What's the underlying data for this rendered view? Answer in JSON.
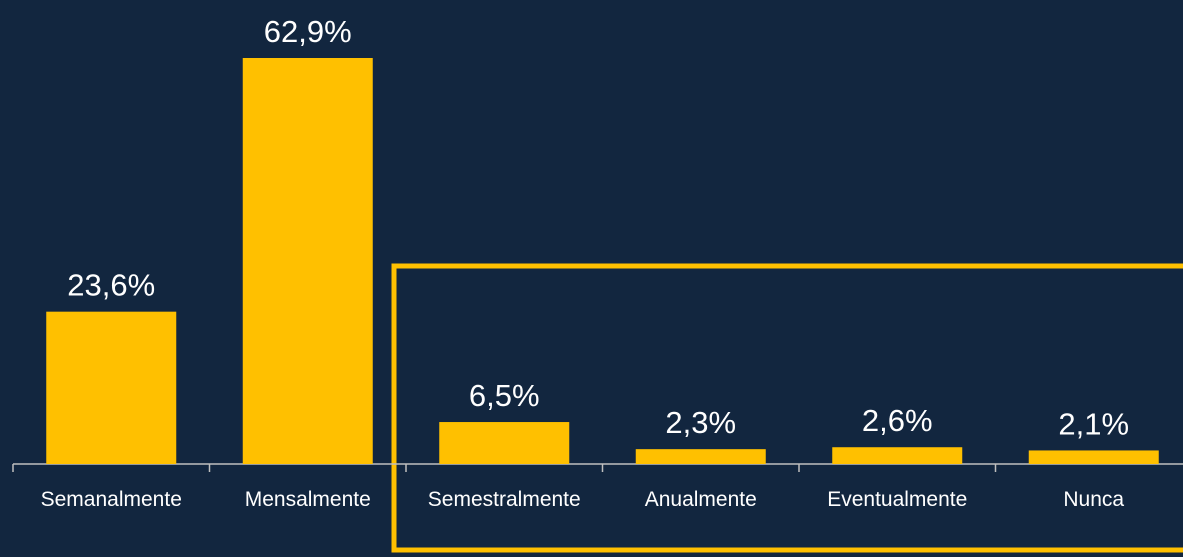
{
  "chart_data": {
    "type": "bar",
    "categories": [
      "Semanalmente",
      "Mensalmente",
      "Semestralmente",
      "Anualmente",
      "Eventualmente",
      "Nunca"
    ],
    "values": [
      23.6,
      62.9,
      6.5,
      2.3,
      2.6,
      2.1
    ],
    "value_labels": [
      "23,6%",
      "62,9%",
      "6,5%",
      "2,3%",
      "2,6%",
      "2,1%"
    ],
    "color": "#ffc000"
  }
}
